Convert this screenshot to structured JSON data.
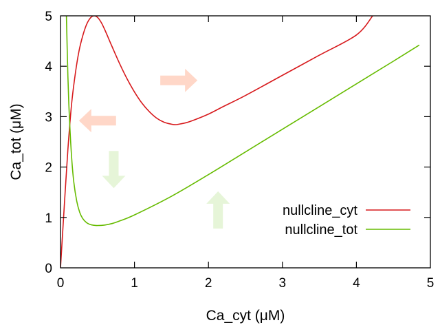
{
  "chart_data": {
    "type": "line",
    "xlabel": "Ca_cyt (μM)",
    "ylabel": "Ca_tot (μM)",
    "xlim": [
      0,
      5
    ],
    "ylim": [
      0,
      5
    ],
    "xticks": [
      "0",
      "1",
      "2",
      "3",
      "4",
      "5"
    ],
    "yticks": [
      "0",
      "1",
      "2",
      "3",
      "4",
      "5"
    ],
    "grid": false,
    "legend_position": "bottom-right",
    "series": [
      {
        "name": "nullcline_cyt",
        "color": "#d7191c",
        "x": [
          0,
          0.05,
          0.1,
          0.15,
          0.2,
          0.25,
          0.3,
          0.35,
          0.4,
          0.45,
          0.5,
          0.55,
          0.6,
          0.65,
          0.7,
          0.8,
          0.9,
          1.0,
          1.1,
          1.2,
          1.3,
          1.4,
          1.5,
          1.55,
          1.6,
          1.7,
          1.8,
          2.0,
          2.2,
          2.5,
          3.0,
          3.5,
          4.0,
          4.22
        ],
        "y": [
          0,
          1.2,
          2.35,
          3.25,
          3.85,
          4.3,
          4.6,
          4.82,
          4.95,
          5.0,
          4.97,
          4.87,
          4.72,
          4.55,
          4.38,
          4.05,
          3.75,
          3.49,
          3.27,
          3.1,
          2.97,
          2.89,
          2.85,
          2.84,
          2.85,
          2.88,
          2.93,
          3.05,
          3.2,
          3.42,
          3.82,
          4.22,
          4.62,
          5.0
        ]
      },
      {
        "name": "nullcline_tot",
        "color": "#66bb00",
        "x": [
          0.08,
          0.1,
          0.12,
          0.15,
          0.18,
          0.22,
          0.26,
          0.3,
          0.35,
          0.4,
          0.45,
          0.5,
          0.6,
          0.7,
          0.8,
          1.0,
          1.5,
          2.0,
          2.5,
          3.0,
          3.5,
          4.0,
          4.5,
          4.85
        ],
        "y": [
          5.0,
          3.8,
          3.0,
          2.2,
          1.7,
          1.32,
          1.1,
          0.98,
          0.9,
          0.86,
          0.845,
          0.84,
          0.85,
          0.88,
          0.93,
          1.05,
          1.42,
          1.85,
          2.3,
          2.75,
          3.2,
          3.65,
          4.1,
          4.42
        ]
      }
    ],
    "annotations": [
      {
        "name": "arrow-right",
        "direction": "right",
        "x": 1.6,
        "y": 3.72,
        "color": "#ffd7c8"
      },
      {
        "name": "arrow-left",
        "direction": "left",
        "x": 0.5,
        "y": 2.92,
        "color": "#ffd7c8"
      },
      {
        "name": "arrow-down",
        "direction": "down",
        "x": 0.72,
        "y": 1.95,
        "color": "#e6f5d8"
      },
      {
        "name": "arrow-up",
        "direction": "up",
        "x": 2.13,
        "y": 1.15,
        "color": "#e6f5d8"
      }
    ]
  }
}
